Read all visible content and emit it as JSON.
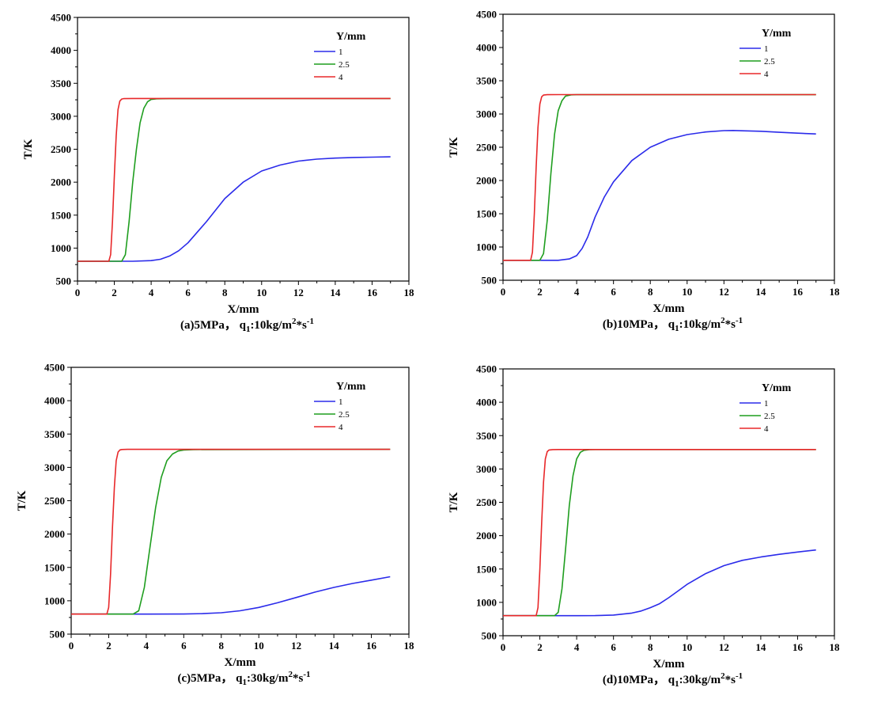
{
  "chart_data": [
    {
      "type": "line",
      "caption": {
        "main": "(a)5MPa，  q",
        "sub": "1",
        "mid": ":10kg/m",
        "sup1": "2",
        "mid2": "*s",
        "sup2": "-1"
      },
      "xlabel": "X/mm",
      "ylabel": "T/K",
      "xlim": [
        0,
        18
      ],
      "ylim": [
        500,
        4500
      ],
      "xticks": [
        "0",
        "2",
        "4",
        "6",
        "8",
        "10",
        "12",
        "14",
        "16",
        "18"
      ],
      "yticks": [
        "500",
        "1000",
        "1500",
        "2000",
        "2500",
        "3000",
        "3500",
        "4000",
        "4500"
      ],
      "legend": {
        "title": "Y/mm",
        "placement": "top-right"
      },
      "series": [
        {
          "name": "1",
          "color": "#2b2bea",
          "x": [
            0,
            3,
            4,
            4.5,
            5,
            5.5,
            6,
            7,
            8,
            9,
            10,
            11,
            12,
            13,
            14,
            15,
            16,
            17
          ],
          "y": [
            800,
            800,
            810,
            830,
            880,
            960,
            1080,
            1400,
            1750,
            2000,
            2170,
            2260,
            2320,
            2350,
            2365,
            2375,
            2380,
            2385
          ]
        },
        {
          "name": "2.5",
          "color": "#1f9e1f",
          "x": [
            0,
            2.4,
            2.6,
            2.8,
            3.0,
            3.2,
            3.4,
            3.6,
            3.8,
            4.0,
            4.3,
            5,
            17
          ],
          "y": [
            800,
            800,
            900,
            1400,
            2000,
            2500,
            2900,
            3120,
            3220,
            3255,
            3265,
            3268,
            3270
          ]
        },
        {
          "name": "4",
          "color": "#e8282a",
          "x": [
            0,
            1.7,
            1.8,
            1.9,
            2.0,
            2.1,
            2.2,
            2.3,
            2.4,
            2.5,
            3,
            17
          ],
          "y": [
            800,
            800,
            900,
            1400,
            2100,
            2700,
            3100,
            3230,
            3262,
            3268,
            3270,
            3270
          ]
        }
      ]
    },
    {
      "type": "line",
      "caption": {
        "main": "(b)10MPa，  q",
        "sub": "1",
        "mid": ":10kg/m",
        "sup1": "2",
        "mid2": "*s",
        "sup2": "-1"
      },
      "xlabel": "X/mm",
      "ylabel": "T/K",
      "xlim": [
        0,
        18
      ],
      "ylim": [
        500,
        4500
      ],
      "xticks": [
        "0",
        "2",
        "4",
        "6",
        "8",
        "10",
        "12",
        "14",
        "16",
        "18"
      ],
      "yticks": [
        "500",
        "1000",
        "1500",
        "2000",
        "2500",
        "3000",
        "3500",
        "4000",
        "4500"
      ],
      "legend": {
        "title": "Y/mm",
        "placement": "top-right"
      },
      "series": [
        {
          "name": "1",
          "color": "#2b2bea",
          "x": [
            0,
            3,
            3.6,
            4.0,
            4.3,
            4.6,
            5,
            5.5,
            6,
            7,
            8,
            9,
            10,
            11,
            12,
            12.5,
            13,
            14,
            15,
            16,
            17
          ],
          "y": [
            800,
            800,
            820,
            870,
            980,
            1150,
            1450,
            1750,
            1980,
            2300,
            2500,
            2620,
            2690,
            2730,
            2750,
            2752,
            2748,
            2740,
            2725,
            2712,
            2700
          ]
        },
        {
          "name": "2.5",
          "color": "#1f9e1f",
          "x": [
            0,
            2.0,
            2.2,
            2.4,
            2.6,
            2.8,
            3.0,
            3.2,
            3.4,
            3.7,
            4,
            17
          ],
          "y": [
            800,
            800,
            900,
            1400,
            2100,
            2700,
            3050,
            3200,
            3270,
            3288,
            3290,
            3290
          ]
        },
        {
          "name": "4",
          "color": "#e8282a",
          "x": [
            0,
            1.5,
            1.6,
            1.7,
            1.8,
            1.9,
            2.0,
            2.1,
            2.2,
            2.4,
            3,
            17
          ],
          "y": [
            800,
            800,
            920,
            1500,
            2200,
            2800,
            3150,
            3260,
            3285,
            3290,
            3292,
            3292
          ]
        }
      ]
    },
    {
      "type": "line",
      "caption": {
        "main": "(c)5MPa，  q",
        "sub": "1",
        "mid": ":30kg/m",
        "sup1": "2",
        "mid2": "*s",
        "sup2": "-1"
      },
      "xlabel": "X/mm",
      "ylabel": "T/K",
      "xlim": [
        0,
        18
      ],
      "ylim": [
        500,
        4500
      ],
      "xticks": [
        "0",
        "2",
        "4",
        "6",
        "8",
        "10",
        "12",
        "14",
        "16",
        "18"
      ],
      "yticks": [
        "500",
        "1000",
        "1500",
        "2000",
        "2500",
        "3000",
        "3500",
        "4000",
        "4500"
      ],
      "legend": {
        "title": "Y/mm",
        "placement": "top-right"
      },
      "series": [
        {
          "name": "1",
          "color": "#2b2bea",
          "x": [
            0,
            4,
            6,
            7,
            8,
            9,
            10,
            11,
            12,
            13,
            14,
            15,
            16,
            17
          ],
          "y": [
            800,
            800,
            802,
            808,
            820,
            850,
            900,
            970,
            1050,
            1130,
            1200,
            1260,
            1310,
            1360
          ]
        },
        {
          "name": "2.5",
          "color": "#1f9e1f",
          "x": [
            0,
            3.3,
            3.6,
            3.9,
            4.2,
            4.5,
            4.8,
            5.1,
            5.4,
            5.7,
            6.0,
            6.5,
            17
          ],
          "y": [
            800,
            800,
            850,
            1200,
            1800,
            2400,
            2850,
            3100,
            3200,
            3245,
            3260,
            3267,
            3270
          ]
        },
        {
          "name": "4",
          "color": "#e8282a",
          "x": [
            0,
            1.9,
            2.0,
            2.1,
            2.2,
            2.3,
            2.4,
            2.5,
            2.6,
            2.7,
            3,
            17
          ],
          "y": [
            800,
            800,
            900,
            1400,
            2100,
            2700,
            3100,
            3230,
            3262,
            3268,
            3270,
            3270
          ]
        }
      ]
    },
    {
      "type": "line",
      "caption": {
        "main": "(d)10MPa，  q",
        "sub": "1",
        "mid": ":30kg/m",
        "sup1": "2",
        "mid2": "*s",
        "sup2": "-1"
      },
      "xlabel": "X/mm",
      "ylabel": "T/K",
      "xlim": [
        0,
        18
      ],
      "ylim": [
        500,
        4500
      ],
      "xticks": [
        "0",
        "2",
        "4",
        "6",
        "8",
        "10",
        "12",
        "14",
        "16",
        "18"
      ],
      "yticks": [
        "500",
        "1000",
        "1500",
        "2000",
        "2500",
        "3000",
        "3500",
        "4000",
        "4500"
      ],
      "legend": {
        "title": "Y/mm",
        "placement": "top-right"
      },
      "series": [
        {
          "name": "1",
          "color": "#2b2bea",
          "x": [
            0,
            4,
            5,
            6,
            7,
            7.5,
            8,
            8.5,
            9,
            9.5,
            10,
            11,
            12,
            13,
            14,
            15,
            16,
            17
          ],
          "y": [
            800,
            800,
            802,
            810,
            840,
            870,
            920,
            980,
            1070,
            1170,
            1270,
            1430,
            1550,
            1630,
            1680,
            1720,
            1755,
            1785
          ]
        },
        {
          "name": "2.5",
          "color": "#1f9e1f",
          "x": [
            0,
            2.8,
            3.0,
            3.2,
            3.4,
            3.6,
            3.8,
            4.0,
            4.2,
            4.4,
            4.7,
            5,
            17
          ],
          "y": [
            800,
            800,
            850,
            1200,
            1800,
            2450,
            2900,
            3150,
            3250,
            3280,
            3290,
            3292,
            3292
          ]
        },
        {
          "name": "4",
          "color": "#e8282a",
          "x": [
            0,
            1.8,
            1.9,
            2.0,
            2.1,
            2.2,
            2.3,
            2.4,
            2.5,
            2.7,
            3,
            17
          ],
          "y": [
            800,
            800,
            920,
            1500,
            2200,
            2800,
            3150,
            3260,
            3285,
            3290,
            3292,
            3292
          ]
        }
      ]
    }
  ]
}
